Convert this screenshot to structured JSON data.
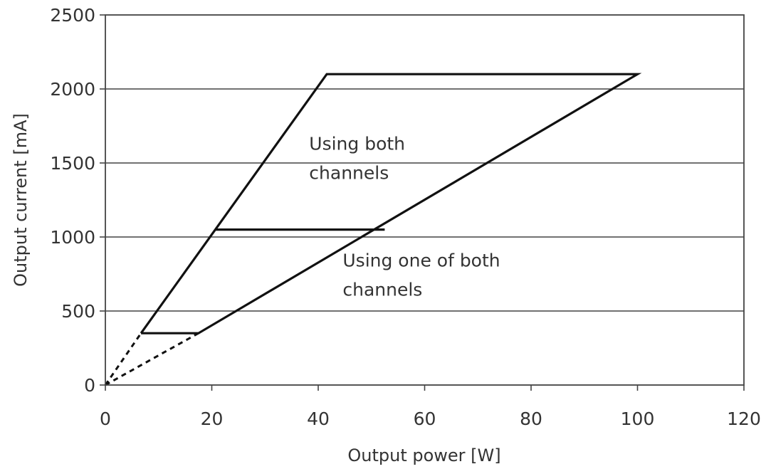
{
  "chart_data": {
    "type": "line",
    "title": "",
    "xlabel": "Output power [W]",
    "ylabel": "Output current [mA]",
    "xlim": [
      0,
      120
    ],
    "ylim": [
      0,
      2500
    ],
    "x_ticks": [
      0,
      20,
      40,
      60,
      80,
      100,
      120
    ],
    "y_ticks": [
      0,
      500,
      1000,
      1500,
      2000,
      2500
    ],
    "grid": {
      "horizontal": true,
      "vertical": false
    },
    "series": [
      {
        "style": "solid",
        "x": [
          6.7,
          41.6,
          100.0,
          17.5,
          6.7
        ],
        "y": [
          350,
          2100,
          2100,
          350,
          350
        ]
      },
      {
        "style": "solid",
        "x": [
          20.7,
          52.5
        ],
        "y": [
          1050,
          1050
        ]
      },
      {
        "style": "dashed",
        "x": [
          0,
          6.7
        ],
        "y": [
          0,
          350
        ]
      },
      {
        "style": "dashed",
        "x": [
          0,
          17.5
        ],
        "y": [
          0,
          350
        ]
      }
    ],
    "annotations": [
      {
        "lines": [
          "Using both",
          "channels"
        ],
        "x": 38.3,
        "y": 1590
      },
      {
        "lines": [
          "Using one of both",
          "channels"
        ],
        "x": 44.6,
        "y": 800
      }
    ]
  }
}
